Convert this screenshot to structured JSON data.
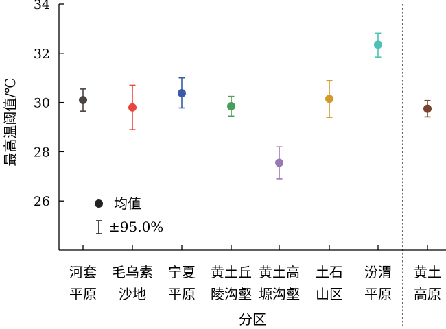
{
  "chart_data": {
    "type": "scatter",
    "subtype": "error-bar",
    "xlabel": "分区",
    "ylabel": "最高温阈值/℃",
    "ylim": [
      24,
      34
    ],
    "yticks": [
      "26",
      "28",
      "30",
      "32",
      "34"
    ],
    "grid": false,
    "legend": {
      "placement": "bottom-left",
      "items": [
        {
          "symbol": "dot",
          "label": "均值"
        },
        {
          "symbol": "errorbar",
          "label": "±95.0%"
        }
      ]
    },
    "separator": {
      "style": "dotted",
      "between": [
        "汾渭平原",
        "黄土高原"
      ]
    },
    "categories": [
      {
        "line1": "河套",
        "line2": "平原",
        "mean": 30.1,
        "low": 29.65,
        "high": 30.55,
        "color": "#4d4340"
      },
      {
        "line1": "毛乌素",
        "line2": "沙地",
        "mean": 29.8,
        "low": 28.9,
        "high": 30.7,
        "color": "#e8453c"
      },
      {
        "line1": "宁夏",
        "line2": "平原",
        "mean": 30.38,
        "low": 29.78,
        "high": 31.0,
        "color": "#3b5ba9"
      },
      {
        "line1": "黄土丘",
        "line2": "陵沟壑",
        "mean": 29.85,
        "low": 29.45,
        "high": 30.25,
        "color": "#4a9e5c"
      },
      {
        "line1": "黄土高",
        "line2": "塬沟壑",
        "mean": 27.55,
        "low": 26.9,
        "high": 28.2,
        "color": "#9a78b5"
      },
      {
        "line1": "土石",
        "line2": "山区",
        "mean": 30.15,
        "low": 29.4,
        "high": 30.9,
        "color": "#d29a2a"
      },
      {
        "line1": "汾渭",
        "line2": "平原",
        "mean": 32.35,
        "low": 31.85,
        "high": 32.82,
        "color": "#4fc2b4"
      },
      {
        "line1": "黄土",
        "line2": "高原",
        "mean": 29.75,
        "low": 29.42,
        "high": 30.08,
        "color": "#7a4232"
      }
    ]
  }
}
